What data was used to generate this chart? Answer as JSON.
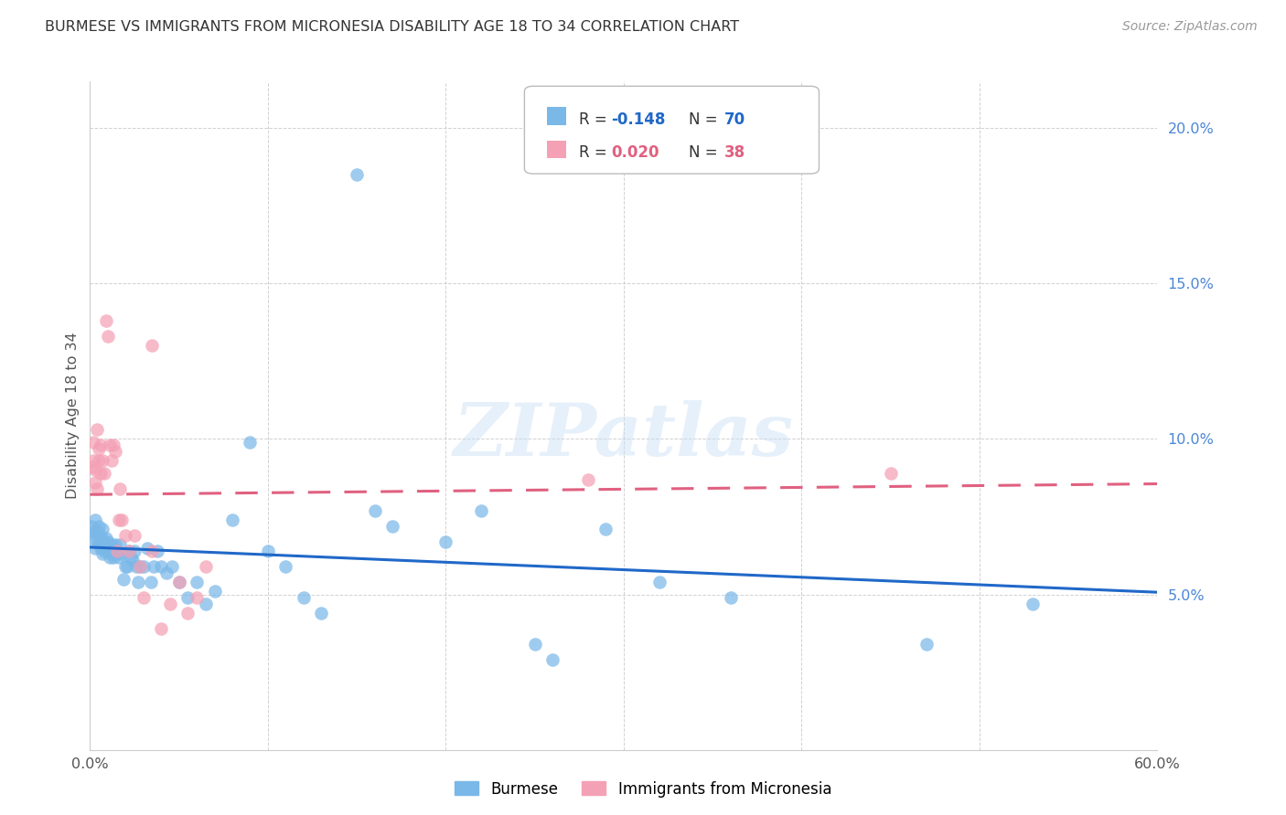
{
  "title": "BURMESE VS IMMIGRANTS FROM MICRONESIA DISABILITY AGE 18 TO 34 CORRELATION CHART",
  "source": "Source: ZipAtlas.com",
  "ylabel": "Disability Age 18 to 34",
  "xlim": [
    0.0,
    0.6
  ],
  "ylim": [
    0.0,
    0.215
  ],
  "xticks": [
    0.0,
    0.1,
    0.2,
    0.3,
    0.4,
    0.5,
    0.6
  ],
  "xtick_labels": [
    "0.0%",
    "",
    "",
    "",
    "",
    "",
    "60.0%"
  ],
  "yticks": [
    0.0,
    0.05,
    0.1,
    0.15,
    0.2
  ],
  "ytick_labels": [
    "",
    "5.0%",
    "10.0%",
    "15.0%",
    "20.0%"
  ],
  "burmese_color": "#7ab8e8",
  "micronesia_color": "#f4a0b5",
  "burmese_R": -0.148,
  "burmese_N": 70,
  "micronesia_R": 0.02,
  "micronesia_N": 38,
  "regression_blue": "#2068c8",
  "regression_pink": "#e06080",
  "watermark": "ZIPatlas",
  "legend_R1_color": "#2068c8",
  "legend_N1_color": "#2068c8",
  "legend_R2_color": "#e06080",
  "legend_N2_color": "#e06080",
  "burmese_x": [
    0.001,
    0.002,
    0.002,
    0.003,
    0.003,
    0.004,
    0.004,
    0.005,
    0.005,
    0.006,
    0.006,
    0.007,
    0.007,
    0.008,
    0.008,
    0.009,
    0.009,
    0.01,
    0.01,
    0.011,
    0.011,
    0.012,
    0.012,
    0.013,
    0.014,
    0.015,
    0.016,
    0.017,
    0.018,
    0.019,
    0.02,
    0.021,
    0.022,
    0.023,
    0.024,
    0.025,
    0.026,
    0.027,
    0.028,
    0.03,
    0.032,
    0.034,
    0.036,
    0.038,
    0.04,
    0.043,
    0.046,
    0.05,
    0.055,
    0.06,
    0.065,
    0.07,
    0.08,
    0.09,
    0.1,
    0.11,
    0.12,
    0.13,
    0.15,
    0.16,
    0.17,
    0.2,
    0.22,
    0.25,
    0.26,
    0.29,
    0.32,
    0.36,
    0.47,
    0.53
  ],
  "burmese_y": [
    0.072,
    0.068,
    0.07,
    0.065,
    0.074,
    0.07,
    0.068,
    0.072,
    0.066,
    0.069,
    0.065,
    0.071,
    0.063,
    0.067,
    0.064,
    0.068,
    0.065,
    0.067,
    0.064,
    0.065,
    0.062,
    0.066,
    0.063,
    0.062,
    0.066,
    0.064,
    0.062,
    0.066,
    0.063,
    0.055,
    0.059,
    0.059,
    0.064,
    0.062,
    0.061,
    0.064,
    0.059,
    0.054,
    0.059,
    0.059,
    0.065,
    0.054,
    0.059,
    0.064,
    0.059,
    0.057,
    0.059,
    0.054,
    0.049,
    0.054,
    0.047,
    0.051,
    0.074,
    0.099,
    0.064,
    0.059,
    0.049,
    0.044,
    0.185,
    0.077,
    0.072,
    0.067,
    0.077,
    0.034,
    0.029,
    0.071,
    0.054,
    0.049,
    0.034,
    0.047
  ],
  "micronesia_x": [
    0.001,
    0.002,
    0.002,
    0.003,
    0.003,
    0.004,
    0.004,
    0.005,
    0.005,
    0.006,
    0.006,
    0.007,
    0.008,
    0.009,
    0.01,
    0.011,
    0.012,
    0.013,
    0.014,
    0.015,
    0.016,
    0.017,
    0.018,
    0.02,
    0.022,
    0.025,
    0.028,
    0.03,
    0.035,
    0.04,
    0.045,
    0.05,
    0.055,
    0.06,
    0.065,
    0.035,
    0.28,
    0.45
  ],
  "micronesia_y": [
    0.091,
    0.093,
    0.099,
    0.09,
    0.086,
    0.084,
    0.103,
    0.093,
    0.097,
    0.089,
    0.098,
    0.093,
    0.089,
    0.138,
    0.133,
    0.098,
    0.093,
    0.098,
    0.096,
    0.064,
    0.074,
    0.084,
    0.074,
    0.069,
    0.064,
    0.069,
    0.059,
    0.049,
    0.064,
    0.039,
    0.047,
    0.054,
    0.044,
    0.049,
    0.059,
    0.13,
    0.087,
    0.089
  ]
}
